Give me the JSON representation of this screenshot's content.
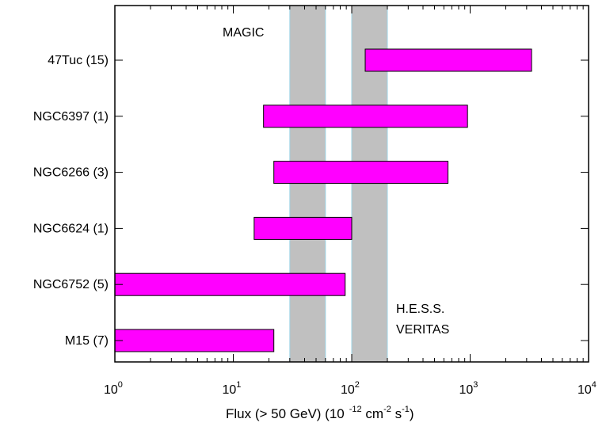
{
  "chart_data": {
    "type": "bar",
    "orientation": "horizontal",
    "xscale": "log",
    "xlim": [
      1,
      10000
    ],
    "xlabel": {
      "main": "Flux (> 50 GeV) (10",
      "exp1": "-12",
      "cm": " cm",
      "exp2": "-2",
      "s": " s",
      "exp3": "-1",
      "close": ")"
    },
    "xticks": [
      {
        "base": "10",
        "exp": "0",
        "value": 1
      },
      {
        "base": "10",
        "exp": "1",
        "value": 10
      },
      {
        "base": "10",
        "exp": "2",
        "value": 100
      },
      {
        "base": "10",
        "exp": "3",
        "value": 1000
      },
      {
        "base": "10",
        "exp": "4",
        "value": 10000
      }
    ],
    "categories": [
      "47Tuc (15)",
      "NGC6397 (1)",
      "NGC6266 (3)",
      "NGC6624 (1)",
      "NGC6752 (5)",
      "M15 (7)"
    ],
    "ranges": [
      {
        "label": "47Tuc (15)",
        "min": 130,
        "max": 3300
      },
      {
        "label": "NGC6397 (1)",
        "min": 18,
        "max": 950
      },
      {
        "label": "NGC6266 (3)",
        "min": 22,
        "max": 650
      },
      {
        "label": "NGC6624 (1)",
        "min": 15,
        "max": 100
      },
      {
        "label": "NGC6752 (5)",
        "min": 1,
        "max": 88
      },
      {
        "label": "M15 (7)",
        "min": 1,
        "max": 22
      }
    ],
    "bar_color": "#ff00ff",
    "sensitivity_bands": [
      {
        "label": "MAGIC",
        "min": 30,
        "max": 60
      },
      {
        "label_lines": [
          "H.E.S.S.",
          "VERITAS"
        ],
        "min": 100,
        "max": 200
      }
    ],
    "band_color": "#c0c0c0",
    "grid": false
  }
}
